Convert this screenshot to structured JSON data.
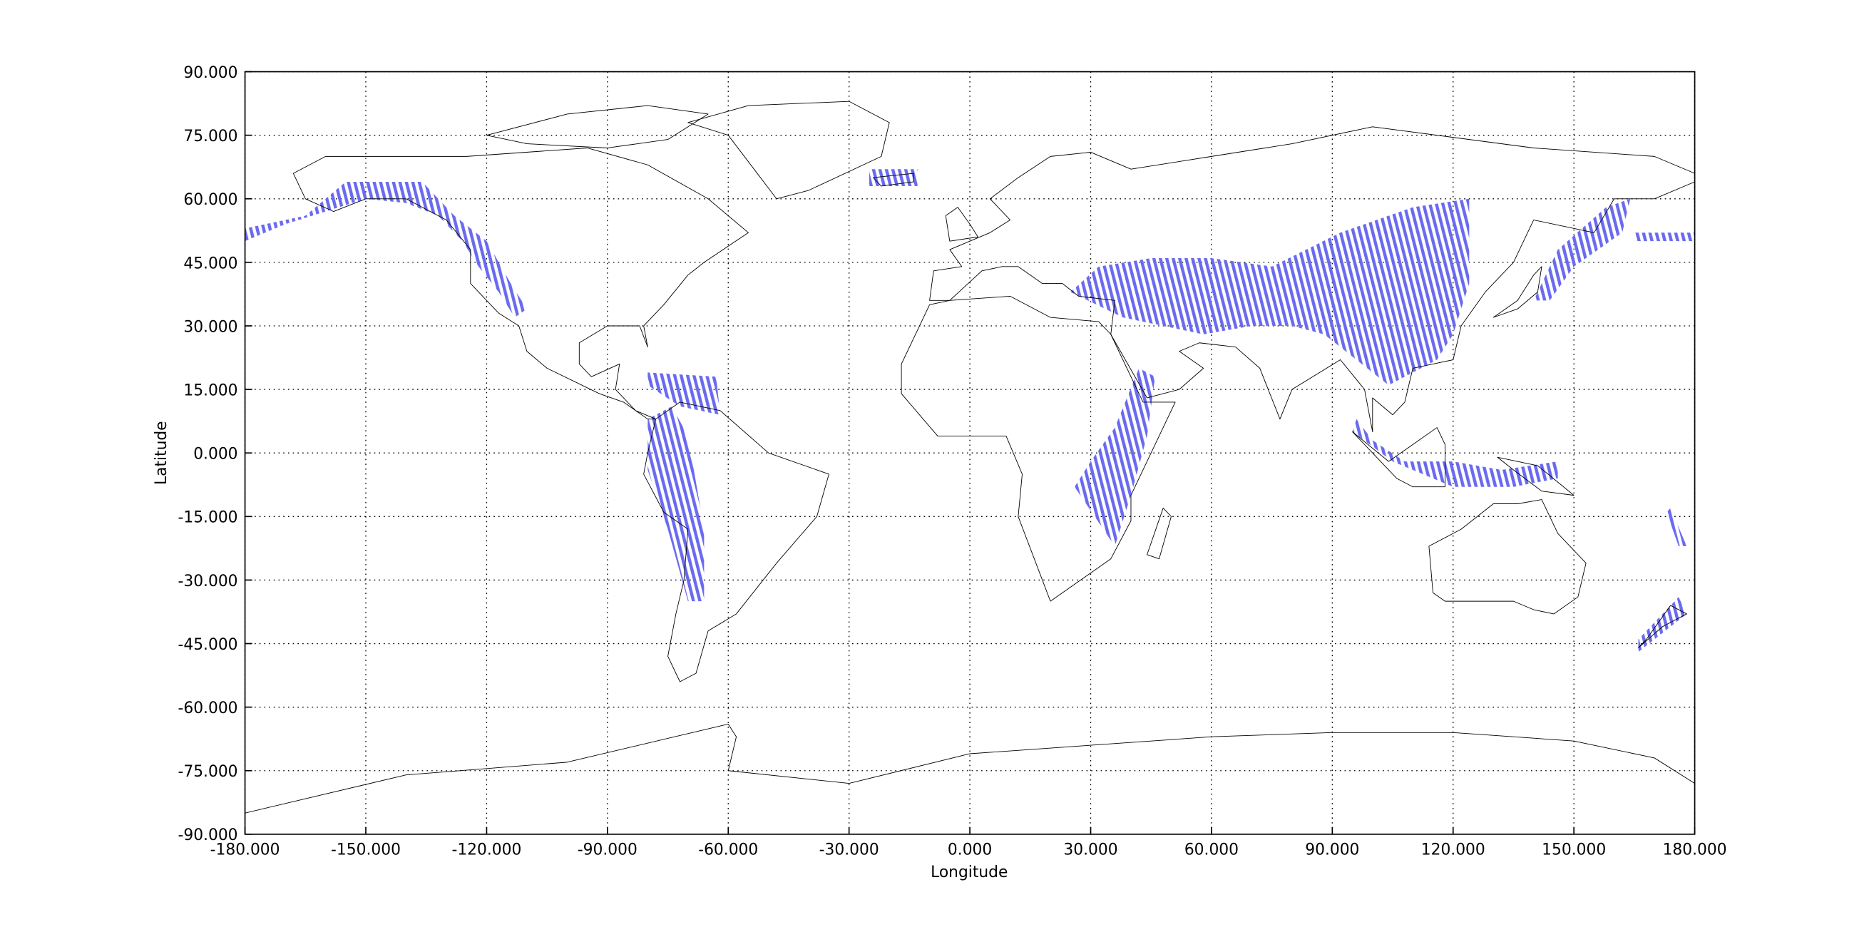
{
  "chart_data": {
    "type": "map",
    "xlabel": "Longitude",
    "ylabel": "Latitude",
    "xlim": [
      -180,
      180
    ],
    "ylim": [
      -90,
      90
    ],
    "xticks": [
      {
        "value": -180,
        "label": "-180.000"
      },
      {
        "value": -150,
        "label": "-150.000"
      },
      {
        "value": -120,
        "label": "-120.000"
      },
      {
        "value": -90,
        "label": "-90.000"
      },
      {
        "value": -60,
        "label": "-60.000"
      },
      {
        "value": -30,
        "label": "-30.000"
      },
      {
        "value": 0,
        "label": "0.000"
      },
      {
        "value": 30,
        "label": "30.000"
      },
      {
        "value": 60,
        "label": "60.000"
      },
      {
        "value": 90,
        "label": "90.000"
      },
      {
        "value": 120,
        "label": "120.000"
      },
      {
        "value": 150,
        "label": "150.000"
      },
      {
        "value": 180,
        "label": "180.000"
      }
    ],
    "yticks": [
      {
        "value": -90,
        "label": "-90.000"
      },
      {
        "value": -75,
        "label": "-75.000"
      },
      {
        "value": -60,
        "label": "-60.000"
      },
      {
        "value": -45,
        "label": "-45.000"
      },
      {
        "value": -30,
        "label": "-30.000"
      },
      {
        "value": -15,
        "label": "-15.000"
      },
      {
        "value": 0,
        "label": "0.000"
      },
      {
        "value": 15,
        "label": "15.000"
      },
      {
        "value": 30,
        "label": "30.000"
      },
      {
        "value": 45,
        "label": "45.000"
      },
      {
        "value": 60,
        "label": "60.000"
      },
      {
        "value": 75,
        "label": "75.000"
      },
      {
        "value": 90,
        "label": "90.000"
      }
    ],
    "grid": true
  }
}
